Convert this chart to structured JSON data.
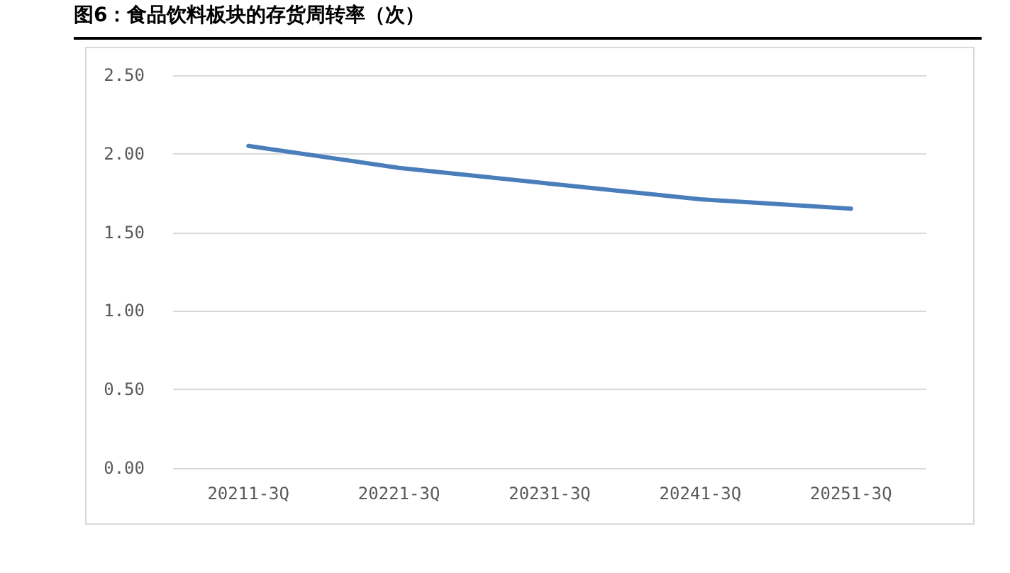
{
  "chart_data": {
    "type": "line",
    "title": "图6：食品饮料板块的存货周转率（次）",
    "categories": [
      "20211-3Q",
      "20221-3Q",
      "20231-3Q",
      "20241-3Q",
      "20251-3Q"
    ],
    "series": [
      {
        "color": "#4a7ebb",
        "values": [
          2.05,
          1.91,
          1.81,
          1.71,
          1.65
        ]
      }
    ],
    "ylim": [
      0,
      2.5
    ],
    "yticks": [
      {
        "value": 0,
        "label": "0.00"
      },
      {
        "value": 0.5,
        "label": "0.50"
      },
      {
        "value": 1,
        "label": "1.00"
      },
      {
        "value": 1.5,
        "label": "1.50"
      },
      {
        "value": 2,
        "label": "2.00"
      },
      {
        "value": 2.5,
        "label": "2.50"
      }
    ],
    "grid": "y",
    "marker": "none",
    "line_style": "solid"
  }
}
